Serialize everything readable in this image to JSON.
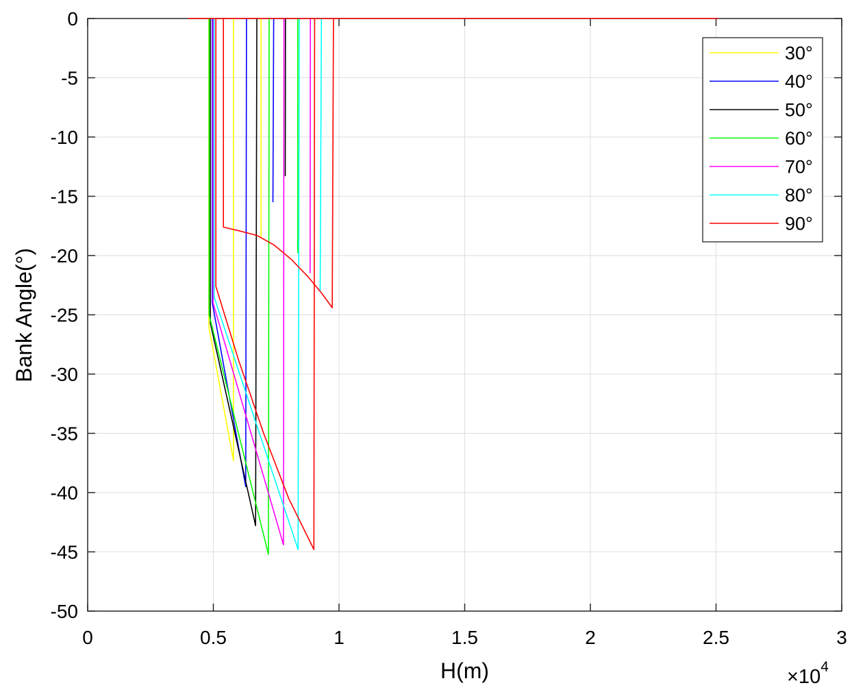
{
  "chart_data": {
    "type": "line",
    "xlabel": "H(m)",
    "ylabel": "Bank Angle(°)",
    "x_multiplier": {
      "base": "×10",
      "exponent": "4"
    },
    "xlim": [
      0,
      3
    ],
    "ylim": [
      -50,
      0
    ],
    "xticks": [
      0,
      0.5,
      1,
      1.5,
      2,
      2.5,
      3
    ],
    "xtick_labels": [
      "0",
      "0.5",
      "1",
      "1.5",
      "2",
      "2.5",
      "3"
    ],
    "yticks": [
      0,
      -5,
      -10,
      -15,
      -20,
      -25,
      -30,
      -35,
      -40,
      -45,
      -50
    ],
    "ytick_labels": [
      "0",
      "-5",
      "-10",
      "-15",
      "-20",
      "-25",
      "-30",
      "-35",
      "-40",
      "-45",
      "-50"
    ],
    "grid": true,
    "legend_position": "top-right",
    "series": [
      {
        "name": "30°",
        "color": "#FFFF00",
        "segments": [
          [
            [
              0.482,
              0
            ],
            [
              0.482,
              -26.0
            ],
            [
              0.58,
              -37.3
            ],
            [
              0.58,
              0
            ]
          ],
          [
            [
              0.69,
              0
            ],
            [
              0.69,
              -18.5
            ]
          ]
        ]
      },
      {
        "name": "40°",
        "color": "#0000FF",
        "segments": [
          [
            [
              0.496,
              0
            ],
            [
              0.496,
              -24.0
            ],
            [
              0.629,
              -39.5
            ],
            [
              0.632,
              0
            ]
          ],
          [
            [
              0.74,
              0
            ],
            [
              0.737,
              -15.5
            ]
          ]
        ]
      },
      {
        "name": "50°",
        "color": "#000000",
        "segments": [
          [
            [
              0.488,
              0
            ],
            [
              0.488,
              -25.7
            ],
            [
              0.668,
              -42.8
            ],
            [
              0.673,
              0
            ]
          ],
          [
            [
              0.787,
              0
            ],
            [
              0.786,
              -13.3
            ]
          ]
        ]
      },
      {
        "name": "60°",
        "color": "#00FF00",
        "segments": [
          [
            [
              0.483,
              0
            ],
            [
              0.483,
              -25.0
            ],
            [
              0.719,
              -45.2
            ],
            [
              0.722,
              0
            ]
          ],
          [
            [
              0.836,
              0
            ],
            [
              0.836,
              -19.8
            ]
          ]
        ]
      },
      {
        "name": "70°",
        "color": "#FF00FF",
        "segments": [
          [
            [
              0.499,
              0
            ],
            [
              0.499,
              -24.0
            ],
            [
              0.779,
              -44.4
            ],
            [
              0.781,
              0
            ]
          ],
          [
            [
              0.886,
              0
            ],
            [
              0.885,
              -21.5
            ]
          ]
        ]
      },
      {
        "name": "80°",
        "color": "#00FFFF",
        "segments": [
          [
            [
              0.503,
              0
            ],
            [
              0.503,
              -23.5
            ],
            [
              0.837,
              -44.8
            ],
            [
              0.842,
              0
            ]
          ],
          [
            [
              0.93,
              0
            ],
            [
              0.925,
              -23.0
            ]
          ]
        ]
      },
      {
        "name": "90°",
        "color": "#FF0000",
        "segments": [
          [
            [
              0.4,
              0
            ],
            [
              2.51,
              0
            ]
          ],
          [
            [
              0.51,
              0
            ],
            [
              0.51,
              -22.6
            ],
            [
              0.6,
              -28.8
            ],
            [
              0.7,
              -35.0
            ],
            [
              0.8,
              -40.5
            ],
            [
              0.9,
              -44.8
            ],
            [
              0.903,
              0
            ]
          ],
          [
            [
              0.54,
              0
            ],
            [
              0.54,
              -17.6
            ],
            [
              0.6,
              -17.9
            ],
            [
              0.673,
              -18.3
            ],
            [
              0.741,
              -19.1
            ],
            [
              0.809,
              -20.3
            ],
            [
              0.877,
              -21.8
            ],
            [
              0.932,
              -23.2
            ],
            [
              0.973,
              -24.4
            ],
            [
              0.978,
              0
            ]
          ]
        ]
      }
    ]
  }
}
